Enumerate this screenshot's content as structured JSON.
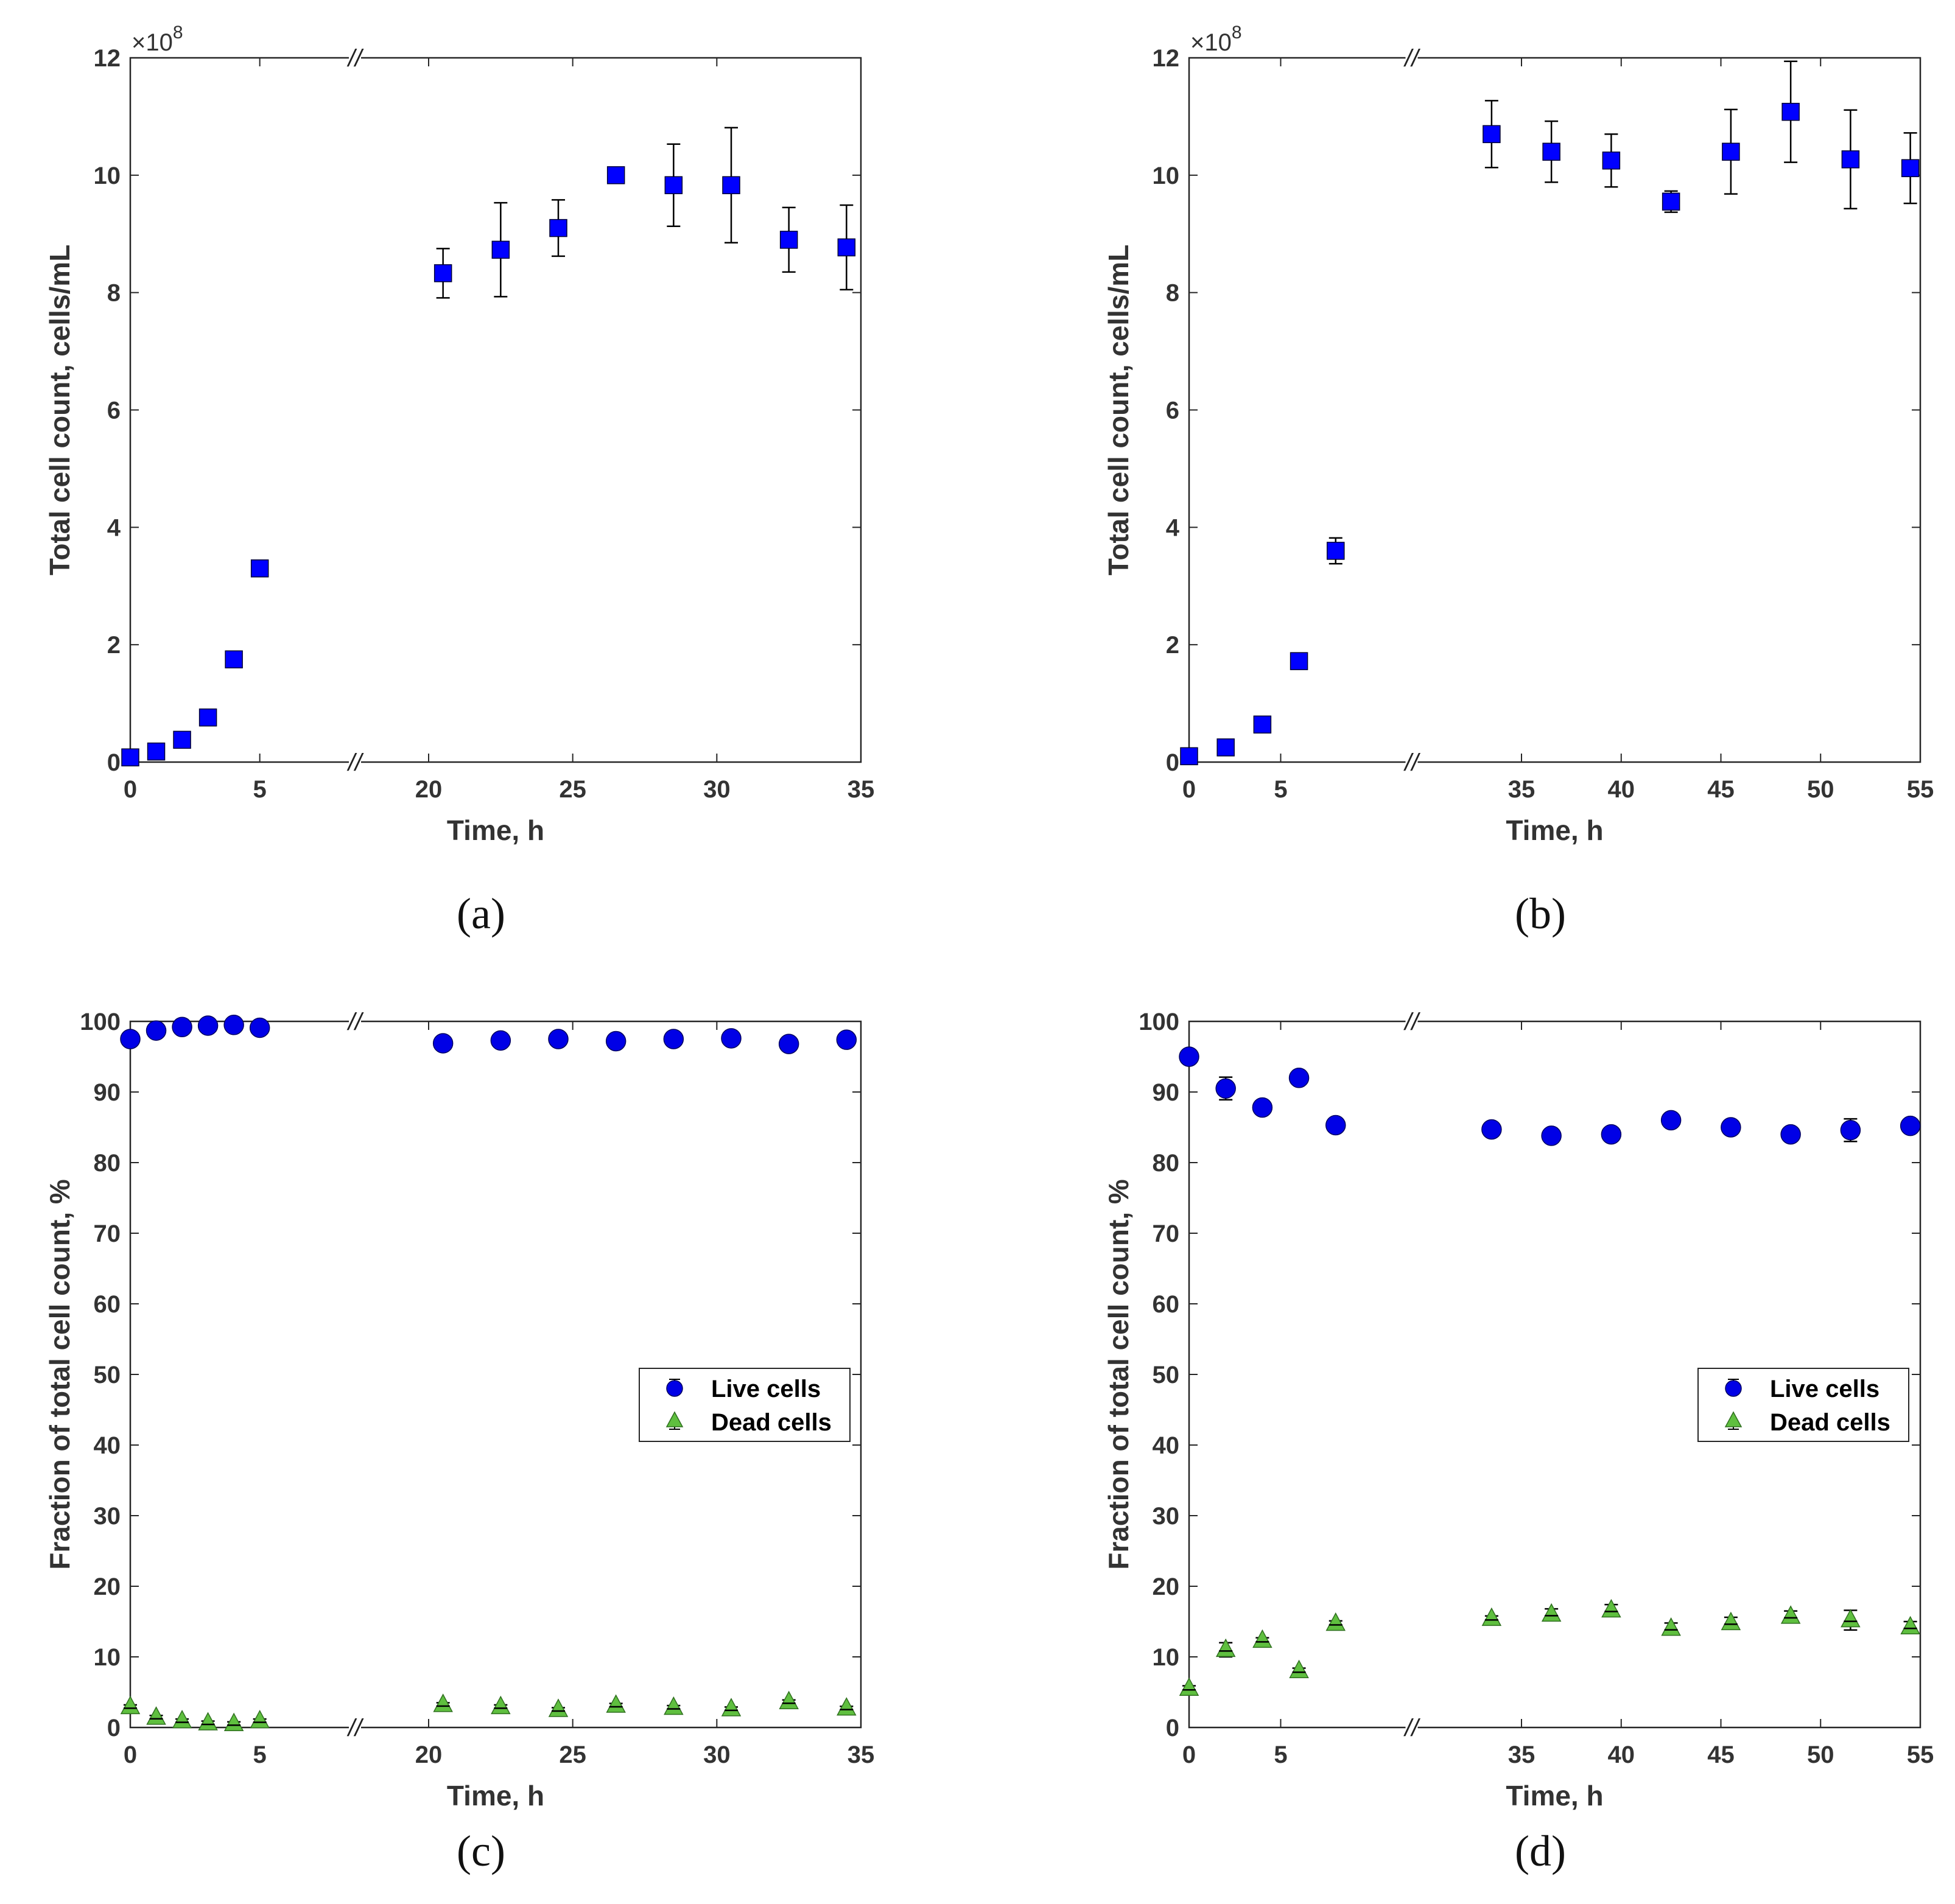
{
  "figure": {
    "y_exponent_base": "×10",
    "y_exponent_power": "8",
    "axis_break_marker": "//",
    "legend": {
      "live_label": "Live cells",
      "dead_label": "Dead cells"
    },
    "colors": {
      "square": "#0000ff",
      "live": "#0000e6",
      "dead": "#5fbf3f",
      "errorbar": "#000000",
      "axis": "#262626"
    }
  },
  "chart_data": [
    {
      "id": "a",
      "caption": "(a)",
      "type": "scatter",
      "marker": "square",
      "title": "",
      "xlabel": "Time, h",
      "ylabel": "Total cell count, cells/mL",
      "ylim": [
        0,
        12
      ],
      "y_multiplier": "×10^8",
      "yticks": [
        0,
        2,
        4,
        6,
        8,
        10,
        12
      ],
      "x_segments": [
        {
          "xlim": [
            0,
            7.5
          ],
          "ticks": [
            0,
            5
          ]
        },
        {
          "xlim": [
            18.5,
            35
          ],
          "ticks": [
            20,
            25,
            30,
            35
          ]
        }
      ],
      "series": [
        {
          "name": "Total cell count",
          "points": [
            {
              "x": 0,
              "y": 0.08,
              "err": 0
            },
            {
              "x": 1,
              "y": 0.18,
              "err": 0
            },
            {
              "x": 2,
              "y": 0.38,
              "err": 0
            },
            {
              "x": 3,
              "y": 0.76,
              "err": 0
            },
            {
              "x": 4,
              "y": 1.75,
              "err": 0
            },
            {
              "x": 5,
              "y": 3.3,
              "err": 0
            },
            {
              "x": 20.5,
              "y": 8.33,
              "err": 0.42
            },
            {
              "x": 22.5,
              "y": 8.73,
              "err": 0.8
            },
            {
              "x": 24.5,
              "y": 9.1,
              "err": 0.48
            },
            {
              "x": 26.5,
              "y": 10.0,
              "err": 0
            },
            {
              "x": 28.5,
              "y": 9.83,
              "err": 0.7
            },
            {
              "x": 30.5,
              "y": 9.83,
              "err": 0.98
            },
            {
              "x": 32.5,
              "y": 8.9,
              "err": 0.55
            },
            {
              "x": 34.5,
              "y": 8.77,
              "err": 0.72
            }
          ]
        }
      ]
    },
    {
      "id": "b",
      "caption": "(b)",
      "type": "scatter",
      "marker": "square",
      "title": "",
      "xlabel": "Time, h",
      "ylabel": "Total cell count, cells/mL",
      "ylim": [
        0,
        12
      ],
      "y_multiplier": "×10^8",
      "yticks": [
        0,
        2,
        4,
        6,
        8,
        10,
        12
      ],
      "x_segments": [
        {
          "xlim": [
            0,
            10.5
          ],
          "ticks": [
            0,
            5
          ]
        },
        {
          "xlim": [
            31,
            55
          ],
          "ticks": [
            35,
            40,
            45,
            50,
            55
          ]
        }
      ],
      "series": [
        {
          "name": "Total cell count",
          "points": [
            {
              "x": 0,
              "y": 0.1,
              "err": 0
            },
            {
              "x": 2,
              "y": 0.25,
              "err": 0
            },
            {
              "x": 4,
              "y": 0.64,
              "err": 0
            },
            {
              "x": 6,
              "y": 1.72,
              "err": 0
            },
            {
              "x": 8,
              "y": 3.6,
              "err": 0.22
            },
            {
              "x": 33.5,
              "y": 10.7,
              "err": 0.57
            },
            {
              "x": 36.5,
              "y": 10.4,
              "err": 0.52
            },
            {
              "x": 39.5,
              "y": 10.25,
              "err": 0.45
            },
            {
              "x": 42.5,
              "y": 9.55,
              "err": 0.18
            },
            {
              "x": 45.5,
              "y": 10.4,
              "err": 0.72
            },
            {
              "x": 48.5,
              "y": 11.08,
              "err": 0.86
            },
            {
              "x": 51.5,
              "y": 10.27,
              "err": 0.84
            },
            {
              "x": 54.5,
              "y": 10.12,
              "err": 0.6
            }
          ]
        }
      ]
    },
    {
      "id": "c",
      "caption": "(c)",
      "type": "scatter",
      "title": "",
      "xlabel": "Time, h",
      "ylabel": "Fraction of total cell count, %",
      "ylim": [
        0,
        100
      ],
      "yticks": [
        0,
        10,
        20,
        30,
        40,
        50,
        60,
        70,
        80,
        90,
        100
      ],
      "x_segments": [
        {
          "xlim": [
            0,
            7.5
          ],
          "ticks": [
            0,
            5
          ]
        },
        {
          "xlim": [
            18.5,
            35
          ],
          "ticks": [
            20,
            25,
            30,
            35
          ]
        }
      ],
      "legend_position": "center-right",
      "series": [
        {
          "name": "Live cells",
          "marker": "circle",
          "points": [
            {
              "x": 0,
              "y": 97.5,
              "err": 0.3
            },
            {
              "x": 1,
              "y": 98.7,
              "err": 0.3
            },
            {
              "x": 2,
              "y": 99.2,
              "err": 0.3
            },
            {
              "x": 3,
              "y": 99.4,
              "err": 0.3
            },
            {
              "x": 4,
              "y": 99.5,
              "err": 0.3
            },
            {
              "x": 5,
              "y": 99.1,
              "err": 0.3
            },
            {
              "x": 20.5,
              "y": 96.9,
              "err": 0.3
            },
            {
              "x": 22.5,
              "y": 97.3,
              "err": 0.3
            },
            {
              "x": 24.5,
              "y": 97.5,
              "err": 0.3
            },
            {
              "x": 26.5,
              "y": 97.2,
              "err": 0.3
            },
            {
              "x": 28.5,
              "y": 97.5,
              "err": 0.3
            },
            {
              "x": 30.5,
              "y": 97.6,
              "err": 0.3
            },
            {
              "x": 32.5,
              "y": 96.8,
              "err": 0.3
            },
            {
              "x": 34.5,
              "y": 97.4,
              "err": 0.3
            }
          ]
        },
        {
          "name": "Dead cells",
          "marker": "triangle",
          "points": [
            {
              "x": 0,
              "y": 2.9,
              "err": 0.3
            },
            {
              "x": 1,
              "y": 1.4,
              "err": 0.3
            },
            {
              "x": 2,
              "y": 0.9,
              "err": 0.3
            },
            {
              "x": 3,
              "y": 0.6,
              "err": 0.3
            },
            {
              "x": 4,
              "y": 0.5,
              "err": 0.3
            },
            {
              "x": 5,
              "y": 0.9,
              "err": 0.3
            },
            {
              "x": 20.5,
              "y": 3.2,
              "err": 0.3
            },
            {
              "x": 22.5,
              "y": 2.9,
              "err": 0.3
            },
            {
              "x": 24.5,
              "y": 2.5,
              "err": 0.3
            },
            {
              "x": 26.5,
              "y": 3.1,
              "err": 0.3
            },
            {
              "x": 28.5,
              "y": 2.8,
              "err": 0.3
            },
            {
              "x": 30.5,
              "y": 2.6,
              "err": 0.3
            },
            {
              "x": 32.5,
              "y": 3.6,
              "err": 0.3
            },
            {
              "x": 34.5,
              "y": 2.7,
              "err": 0.3
            }
          ]
        }
      ]
    },
    {
      "id": "d",
      "caption": "(d)",
      "type": "scatter",
      "title": "",
      "xlabel": "Time, h",
      "ylabel": "Fraction of total cell count, %",
      "ylim": [
        0,
        100
      ],
      "yticks": [
        0,
        10,
        20,
        30,
        40,
        50,
        60,
        70,
        80,
        90,
        100
      ],
      "x_segments": [
        {
          "xlim": [
            0,
            10.5
          ],
          "ticks": [
            0,
            5
          ]
        },
        {
          "xlim": [
            31,
            55
          ],
          "ticks": [
            35,
            40,
            45,
            50,
            55
          ]
        }
      ],
      "legend_position": "center-right",
      "series": [
        {
          "name": "Live cells",
          "marker": "circle",
          "points": [
            {
              "x": 0,
              "y": 95.0,
              "err": 0.4
            },
            {
              "x": 2,
              "y": 90.5,
              "err": 1.6
            },
            {
              "x": 4,
              "y": 87.8,
              "err": 0.4
            },
            {
              "x": 6,
              "y": 92.0,
              "err": 0.4
            },
            {
              "x": 8,
              "y": 85.3,
              "err": 0.4
            },
            {
              "x": 33.5,
              "y": 84.7,
              "err": 0.4
            },
            {
              "x": 36.5,
              "y": 83.8,
              "err": 0.4
            },
            {
              "x": 39.5,
              "y": 84.0,
              "err": 0.4
            },
            {
              "x": 42.5,
              "y": 86.0,
              "err": 0.4
            },
            {
              "x": 45.5,
              "y": 85.0,
              "err": 0.4
            },
            {
              "x": 48.5,
              "y": 84.0,
              "err": 0.4
            },
            {
              "x": 51.5,
              "y": 84.6,
              "err": 1.6
            },
            {
              "x": 54.5,
              "y": 85.2,
              "err": 0.4
            }
          ]
        },
        {
          "name": "Dead cells",
          "marker": "triangle",
          "points": [
            {
              "x": 0,
              "y": 5.5,
              "err": 0.4
            },
            {
              "x": 2,
              "y": 11.0,
              "err": 1.0
            },
            {
              "x": 4,
              "y": 12.3,
              "err": 0.4
            },
            {
              "x": 6,
              "y": 8.0,
              "err": 0.4
            },
            {
              "x": 8,
              "y": 14.7,
              "err": 0.4
            },
            {
              "x": 33.5,
              "y": 15.4,
              "err": 0.4
            },
            {
              "x": 36.5,
              "y": 16.0,
              "err": 0.8
            },
            {
              "x": 39.5,
              "y": 16.6,
              "err": 0.8
            },
            {
              "x": 42.5,
              "y": 14.0,
              "err": 0.8
            },
            {
              "x": 45.5,
              "y": 14.8,
              "err": 0.8
            },
            {
              "x": 48.5,
              "y": 15.7,
              "err": 0.8
            },
            {
              "x": 51.5,
              "y": 15.2,
              "err": 1.4
            },
            {
              "x": 54.5,
              "y": 14.2,
              "err": 0.8
            }
          ]
        }
      ]
    }
  ]
}
